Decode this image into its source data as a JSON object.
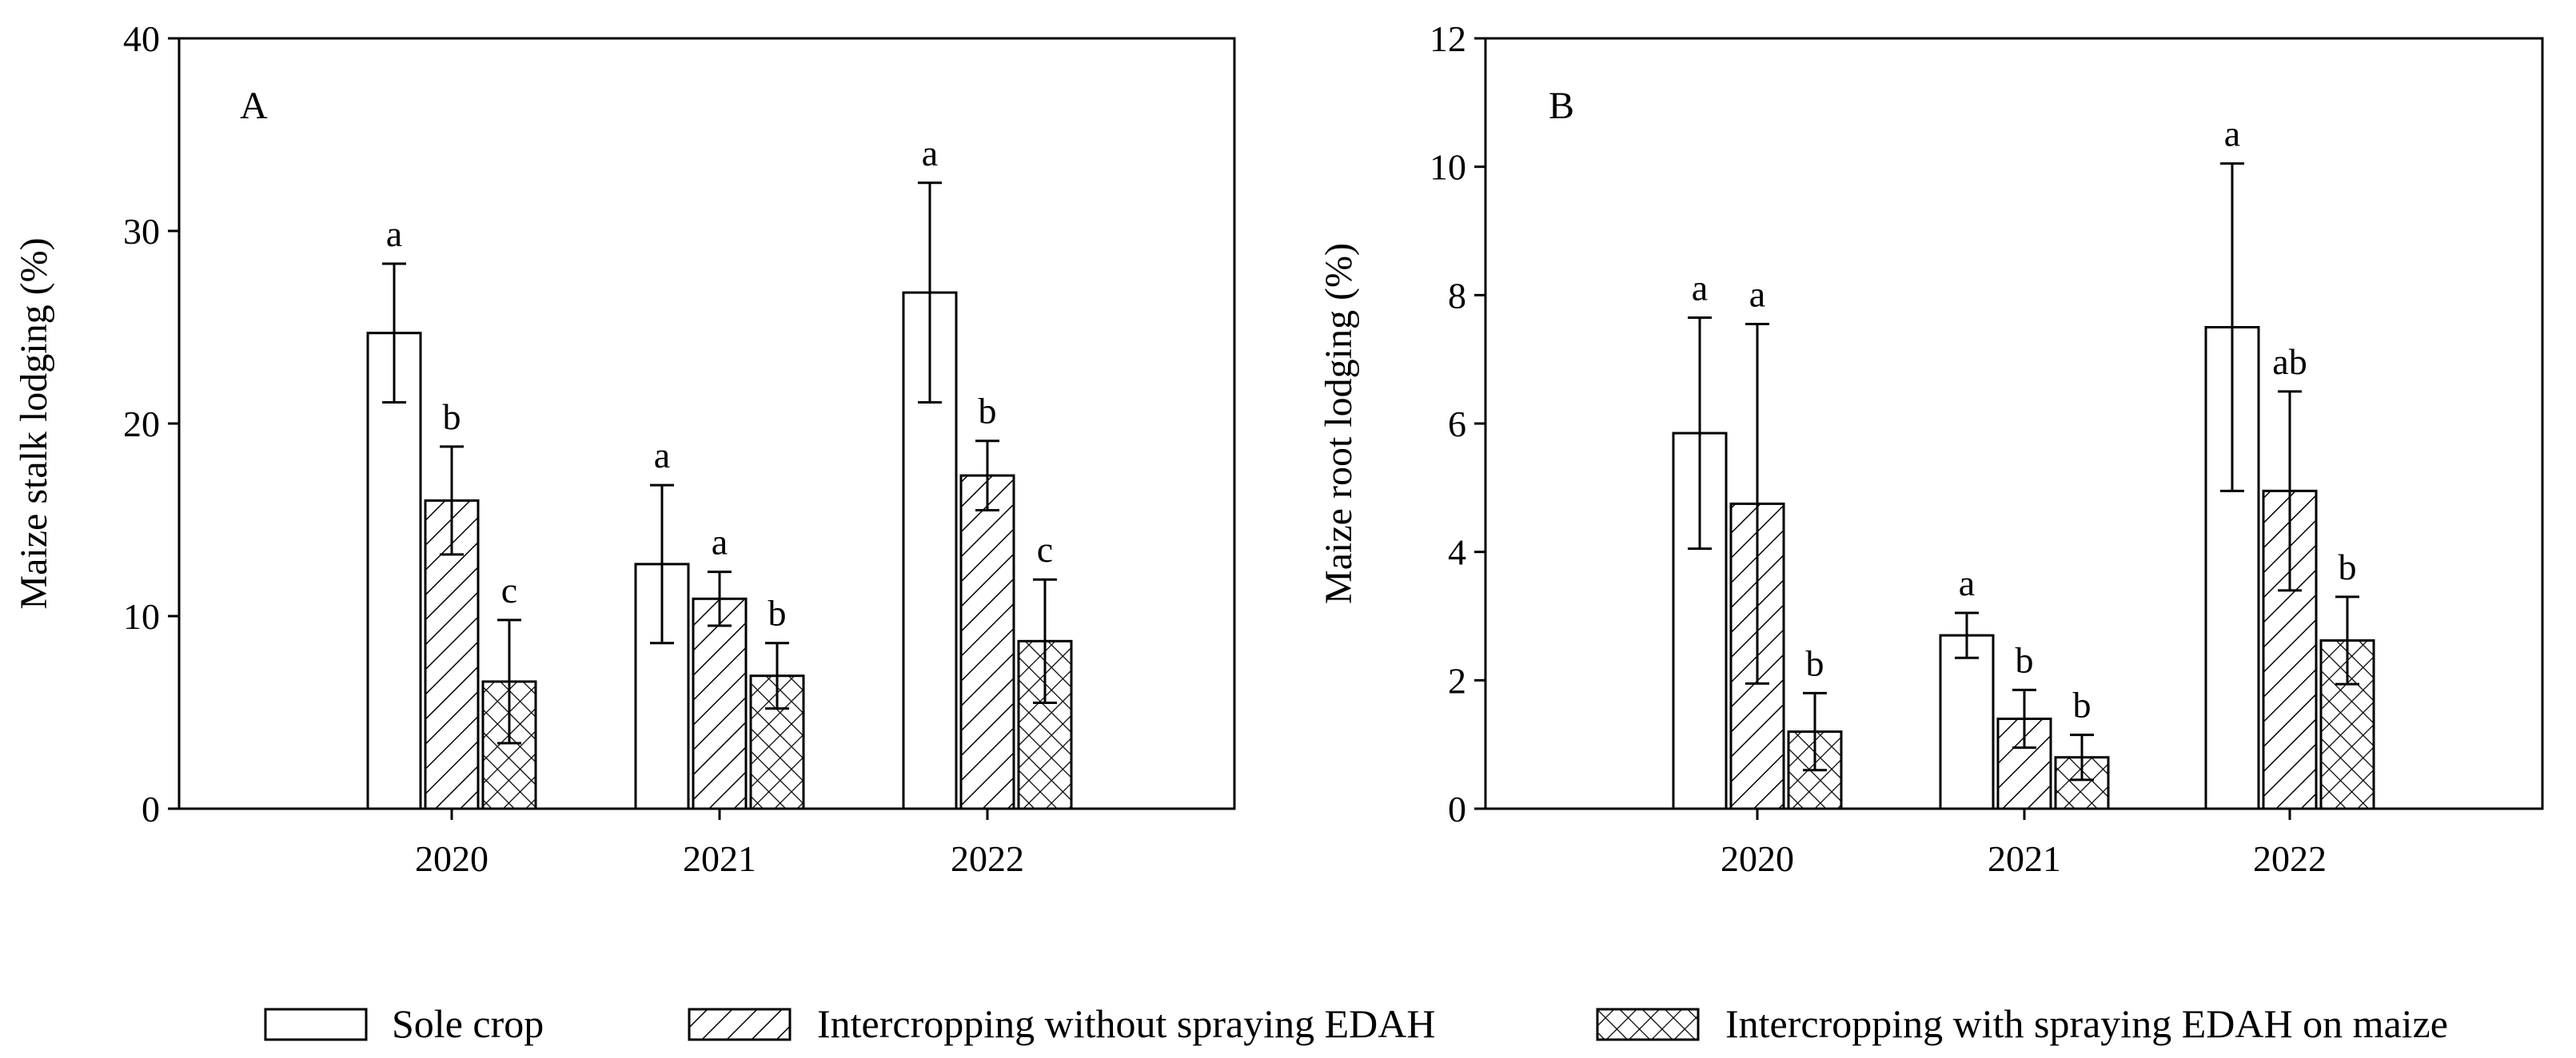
{
  "chart_data": [
    {
      "type": "bar",
      "panel": "A",
      "ylabel": "Maize stalk lodging (%)",
      "ylim": [
        0,
        40
      ],
      "yticks": [
        0,
        10,
        20,
        30,
        40
      ],
      "categories": [
        "2020",
        "2021",
        "2022"
      ],
      "series": [
        {
          "name": "Sole crop",
          "values": [
            24.7,
            12.7,
            26.8
          ],
          "errors": [
            3.6,
            4.1,
            5.7
          ],
          "letters": [
            "a",
            "a",
            "a"
          ]
        },
        {
          "name": "Intercropping without spraying EDAH",
          "values": [
            16.0,
            10.9,
            17.3
          ],
          "errors": [
            2.8,
            1.4,
            1.8
          ],
          "letters": [
            "b",
            "a",
            "b"
          ]
        },
        {
          "name": "Intercropping with spraying EDAH on maize",
          "values": [
            6.6,
            6.9,
            8.7
          ],
          "errors": [
            3.2,
            1.7,
            3.2
          ],
          "letters": [
            "c",
            "b",
            "c"
          ]
        }
      ]
    },
    {
      "type": "bar",
      "panel": "B",
      "ylabel": "Maize root lodging (%)",
      "ylim": [
        0,
        12
      ],
      "yticks": [
        0,
        2,
        4,
        6,
        8,
        10,
        12
      ],
      "categories": [
        "2020",
        "2021",
        "2022"
      ],
      "series": [
        {
          "name": "Sole crop",
          "values": [
            5.85,
            2.7,
            7.5
          ],
          "errors": [
            1.8,
            0.35,
            2.55
          ],
          "letters": [
            "a",
            "a",
            "a"
          ]
        },
        {
          "name": "Intercropping without spraying EDAH",
          "values": [
            4.75,
            1.4,
            4.95
          ],
          "errors": [
            2.8,
            0.45,
            1.55
          ],
          "letters": [
            "a",
            "b",
            "ab"
          ]
        },
        {
          "name": "Intercropping with spraying EDAH on maize",
          "values": [
            1.2,
            0.8,
            2.62
          ],
          "errors": [
            0.6,
            0.35,
            0.68
          ],
          "letters": [
            "b",
            "b",
            "b"
          ]
        }
      ]
    }
  ],
  "legend": [
    {
      "label": "Sole crop",
      "pattern": "none"
    },
    {
      "label": "Intercropping without spraying EDAH",
      "pattern": "diag"
    },
    {
      "label": "Intercropping with spraying EDAH on maize",
      "pattern": "cross"
    }
  ]
}
